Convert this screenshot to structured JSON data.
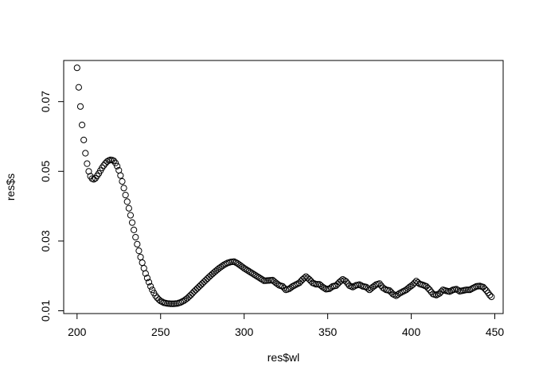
{
  "chart_data": {
    "type": "scatter",
    "xlabel": "res$wl",
    "ylabel": "res$s",
    "xlim": [
      192,
      455
    ],
    "ylim": [
      0.0092,
      0.0818
    ],
    "x_ticks": [
      200,
      250,
      300,
      350,
      400,
      450
    ],
    "y_ticks": [
      0.01,
      0.03,
      0.05,
      0.07
    ],
    "x_tick_labels": [
      "200",
      "250",
      "300",
      "350",
      "400",
      "450"
    ],
    "y_tick_labels": [
      "0.01",
      "0.03",
      "0.05",
      "0.07"
    ],
    "grid": false,
    "marker": "open-circle",
    "x_range": [
      200,
      448
    ],
    "x_step": 1,
    "y_anchors": [
      [
        200,
        0.0797
      ],
      [
        201,
        0.0741
      ],
      [
        202,
        0.0686
      ],
      [
        203,
        0.0633
      ],
      [
        204,
        0.059
      ],
      [
        205,
        0.0552
      ],
      [
        206,
        0.0522
      ],
      [
        207,
        0.05
      ],
      [
        208,
        0.0486
      ],
      [
        209,
        0.0479
      ],
      [
        210,
        0.0477
      ],
      [
        211,
        0.048
      ],
      [
        212,
        0.0487
      ],
      [
        213,
        0.0494
      ],
      [
        214,
        0.0502
      ],
      [
        215,
        0.051
      ],
      [
        216,
        0.0517
      ],
      [
        217,
        0.0523
      ],
      [
        218,
        0.0528
      ],
      [
        219,
        0.0531
      ],
      [
        220,
        0.0533
      ],
      [
        221,
        0.0532
      ],
      [
        222,
        0.053
      ],
      [
        223,
        0.0524
      ],
      [
        224,
        0.0515
      ],
      [
        225,
        0.0503
      ],
      [
        226,
        0.0488
      ],
      [
        227,
        0.0471
      ],
      [
        228,
        0.0452
      ],
      [
        229,
        0.0432
      ],
      [
        230,
        0.0413
      ],
      [
        231,
        0.0394
      ],
      [
        232,
        0.0374
      ],
      [
        233,
        0.0353
      ],
      [
        234,
        0.0332
      ],
      [
        235,
        0.0311
      ],
      [
        236,
        0.0291
      ],
      [
        237,
        0.0272
      ],
      [
        238,
        0.0254
      ],
      [
        239,
        0.0238
      ],
      [
        240,
        0.0222
      ],
      [
        241,
        0.0207
      ],
      [
        242,
        0.0194
      ],
      [
        243,
        0.0182
      ],
      [
        244,
        0.017
      ],
      [
        245,
        0.016
      ],
      [
        246,
        0.0151
      ],
      [
        247,
        0.0143
      ],
      [
        248,
        0.0137
      ],
      [
        249,
        0.0132
      ],
      [
        250,
        0.0128
      ],
      [
        252,
        0.0123
      ],
      [
        254,
        0.0121
      ],
      [
        256,
        0.012
      ],
      [
        258,
        0.012
      ],
      [
        260,
        0.0121
      ],
      [
        262,
        0.0124
      ],
      [
        264,
        0.0129
      ],
      [
        266,
        0.0136
      ],
      [
        268,
        0.0145
      ],
      [
        270,
        0.0155
      ],
      [
        273,
        0.0169
      ],
      [
        276,
        0.0183
      ],
      [
        279,
        0.0197
      ],
      [
        282,
        0.021
      ],
      [
        285,
        0.0222
      ],
      [
        288,
        0.0232
      ],
      [
        290,
        0.0237
      ],
      [
        292,
        0.024
      ],
      [
        294,
        0.0241
      ],
      [
        296,
        0.0236
      ],
      [
        298,
        0.0229
      ],
      [
        300,
        0.0222
      ],
      [
        303,
        0.0213
      ],
      [
        306,
        0.0204
      ],
      [
        309,
        0.0195
      ],
      [
        312,
        0.0186
      ],
      [
        315,
        0.0187
      ],
      [
        317,
        0.0188
      ],
      [
        319,
        0.018
      ],
      [
        321,
        0.0173
      ],
      [
        323,
        0.017
      ],
      [
        325,
        0.016
      ],
      [
        327,
        0.0163
      ],
      [
        329,
        0.017
      ],
      [
        331,
        0.0175
      ],
      [
        333,
        0.018
      ],
      [
        335,
        0.019
      ],
      [
        337,
        0.0198
      ],
      [
        339,
        0.019
      ],
      [
        341,
        0.018
      ],
      [
        343,
        0.0176
      ],
      [
        345,
        0.0176
      ],
      [
        347,
        0.0168
      ],
      [
        349,
        0.0162
      ],
      [
        351,
        0.0163
      ],
      [
        353,
        0.017
      ],
      [
        355,
        0.0172
      ],
      [
        357,
        0.0182
      ],
      [
        359,
        0.019
      ],
      [
        361,
        0.0184
      ],
      [
        363,
        0.0172
      ],
      [
        365,
        0.0168
      ],
      [
        367,
        0.0173
      ],
      [
        369,
        0.0175
      ],
      [
        371,
        0.017
      ],
      [
        373,
        0.0168
      ],
      [
        375,
        0.016
      ],
      [
        377,
        0.0168
      ],
      [
        379,
        0.0175
      ],
      [
        381,
        0.0178
      ],
      [
        383,
        0.0166
      ],
      [
        385,
        0.016
      ],
      [
        387,
        0.0158
      ],
      [
        389,
        0.0148
      ],
      [
        391,
        0.0143
      ],
      [
        393,
        0.015
      ],
      [
        395,
        0.0155
      ],
      [
        397,
        0.016
      ],
      [
        399,
        0.0168
      ],
      [
        401,
        0.0175
      ],
      [
        403,
        0.0185
      ],
      [
        405,
        0.0177
      ],
      [
        407,
        0.0174
      ],
      [
        409,
        0.017
      ],
      [
        411,
        0.016
      ],
      [
        413,
        0.0148
      ],
      [
        415,
        0.0145
      ],
      [
        417,
        0.015
      ],
      [
        419,
        0.016
      ],
      [
        421,
        0.0157
      ],
      [
        423,
        0.0155
      ],
      [
        425,
        0.016
      ],
      [
        427,
        0.0162
      ],
      [
        429,
        0.0156
      ],
      [
        431,
        0.0158
      ],
      [
        433,
        0.016
      ],
      [
        435,
        0.016
      ],
      [
        437,
        0.0165
      ],
      [
        439,
        0.017
      ],
      [
        441,
        0.0171
      ],
      [
        443,
        0.0168
      ],
      [
        445,
        0.0158
      ],
      [
        447,
        0.0145
      ],
      [
        448,
        0.014
      ]
    ]
  }
}
